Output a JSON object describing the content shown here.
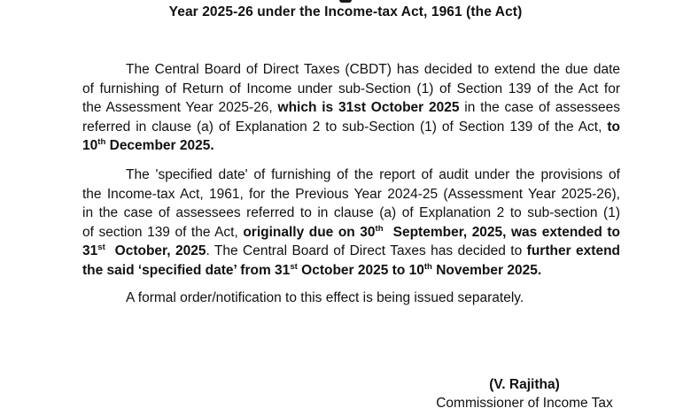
{
  "page": {
    "background": "#ffffff",
    "text_color": "#111111"
  },
  "heading": {
    "text": "Year 2025-26 under the Income-tax Act, 1961 (the Act)"
  },
  "paragraphs": [
    {
      "lines": [
        {
          "indent": true,
          "segments": [
            {
              "t": "The Central Board of Direct Taxes (CBDT) has decided to extend the due date"
            }
          ]
        },
        {
          "segments": [
            {
              "t": "of furnishing of Return of Income under sub-Section (1) of Section 139 of the Act for"
            }
          ]
        },
        {
          "segments": [
            {
              "t": "the Assessment Year 2025-26, "
            },
            {
              "t": "which is 31st October 2025",
              "b": true
            },
            {
              "t": " in the case of assessees"
            }
          ]
        },
        {
          "segments": [
            {
              "t": "referred in clause (a) of Explanation 2 to sub-Section (1) of Section 139 of the Act, "
            },
            {
              "t": "to",
              "b": true
            }
          ]
        },
        {
          "last": true,
          "segments": [
            {
              "t": "10",
              "b": true
            },
            {
              "t": "th",
              "b": true,
              "sup": true
            },
            {
              "t": " December 2025.",
              "b": true
            }
          ]
        }
      ]
    },
    {
      "lines": [
        {
          "indent": true,
          "segments": [
            {
              "t": "The 'specified date' of furnishing of the report of audit under the provisions of"
            }
          ]
        },
        {
          "segments": [
            {
              "t": "the Income-tax Act, 1961, for the Previous Year 2024-25 (Assessment Year 2025-26),"
            }
          ]
        },
        {
          "segments": [
            {
              "t": "in the case of assessees referred to in clause (a) of Explanation 2 to sub-section (1)"
            }
          ]
        },
        {
          "segments": [
            {
              "t": "of section 139 of the Act, "
            },
            {
              "t": "originally due on 30",
              "b": true
            },
            {
              "t": "th",
              "b": true,
              "sup": true
            },
            {
              "t": "  September, 2025, was extended to",
              "b": true
            }
          ]
        },
        {
          "segments": [
            {
              "t": "31",
              "b": true
            },
            {
              "t": "st",
              "b": true,
              "sup": true
            },
            {
              "t": "  October, 2025",
              "b": true
            },
            {
              "t": ". The Central Board of Direct Taxes has decided to "
            },
            {
              "t": "further extend",
              "b": true
            }
          ]
        },
        {
          "last": true,
          "segments": [
            {
              "t": "the said ‘specified date’ from 31",
              "b": true
            },
            {
              "t": "st",
              "b": true,
              "sup": true
            },
            {
              "t": " October 2025 to 10",
              "b": true
            },
            {
              "t": "th",
              "b": true,
              "sup": true
            },
            {
              "t": " November 2025.",
              "b": true
            }
          ]
        }
      ]
    },
    {
      "lines": [
        {
          "indent": true,
          "last": true,
          "segments": [
            {
              "t": "A formal order/notification to this effect is being issued separately."
            }
          ]
        }
      ]
    }
  ],
  "signature": {
    "name": "(V. Rajitha)",
    "title": "Commissioner of Income Tax"
  }
}
